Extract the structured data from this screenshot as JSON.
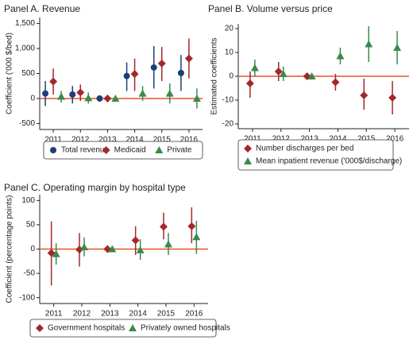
{
  "chart_data": [
    {
      "type": "errorbar",
      "title": "Panel A. Revenue",
      "y_label": "Coefficient ('000 $/bed)",
      "categories": [
        "2011",
        "2012",
        "2013",
        "2014",
        "2015",
        "2016"
      ],
      "ylim": [
        -620,
        1620
      ],
      "yticks": [
        -500,
        0,
        500,
        {
          "value": 1000,
          "label": "1,000"
        },
        {
          "value": 1500,
          "label": "1,500"
        }
      ],
      "zero_line": true,
      "zero_line_color": "#e8532a",
      "series": [
        {
          "name": "Total revenue",
          "color": "#1f3f73",
          "marker": "circle",
          "values": [
            100,
            80,
            0,
            450,
            620,
            510
          ],
          "ci_low": [
            -150,
            -100,
            null,
            150,
            200,
            150
          ],
          "ci_high": [
            350,
            250,
            null,
            720,
            1050,
            870
          ]
        },
        {
          "name": "Medicaid",
          "color": "#a3282c",
          "marker": "diamond",
          "values": [
            340,
            120,
            0,
            490,
            700,
            800
          ],
          "ci_low": [
            80,
            -50,
            null,
            150,
            350,
            400
          ],
          "ci_high": [
            600,
            280,
            null,
            800,
            1030,
            1200
          ]
        },
        {
          "name": "Private",
          "color": "#3a8a4a",
          "marker": "triangle",
          "values": [
            40,
            10,
            0,
            100,
            100,
            0
          ],
          "ci_low": [
            -80,
            -100,
            null,
            -50,
            -100,
            -200
          ],
          "ci_high": [
            150,
            120,
            null,
            250,
            300,
            200
          ]
        }
      ]
    },
    {
      "type": "errorbar",
      "title": "Panel B. Volume versus price",
      "y_label": "Estimated coefficients",
      "categories": [
        "2011",
        "2012",
        "2013",
        "2014",
        "2015",
        "2016"
      ],
      "ylim": [
        -22,
        22
      ],
      "yticks": [
        -20,
        -10,
        0,
        10,
        20
      ],
      "zero_line": true,
      "zero_line_color": "#e8532a",
      "series": [
        {
          "name": "Number discharges per bed",
          "color": "#a3282c",
          "marker": "diamond",
          "values": [
            -3,
            2,
            0,
            -2.5,
            -8,
            -9
          ],
          "ci_low": [
            -9,
            -2,
            null,
            -6,
            -14,
            -16
          ],
          "ci_high": [
            2,
            6,
            null,
            1,
            -1,
            -2
          ]
        },
        {
          "name": "Mean inpatient revenue ('000$/discharge)",
          "color": "#3a8a4a",
          "marker": "triangle",
          "values": [
            3.5,
            1,
            0,
            8.5,
            13.5,
            12
          ],
          "ci_low": [
            0,
            -2,
            null,
            5,
            6,
            5
          ],
          "ci_high": [
            7,
            4,
            null,
            12,
            21,
            19
          ]
        }
      ]
    },
    {
      "type": "errorbar",
      "title": "Panel C. Operating margin by hospital type",
      "y_label": "Coefficient (percentage points)",
      "categories": [
        "2011",
        "2012",
        "2013",
        "2014",
        "2015",
        "2016"
      ],
      "ylim": [
        -112,
        112
      ],
      "yticks": [
        -100,
        -50,
        0,
        50,
        100
      ],
      "zero_line": true,
      "zero_line_color": "#e8532a",
      "series": [
        {
          "name": "Government hospitals",
          "color": "#a3282c",
          "marker": "diamond",
          "values": [
            -8,
            -1,
            0,
            18,
            46,
            47
          ],
          "ci_low": [
            -75,
            -36,
            null,
            -12,
            20,
            12
          ],
          "ci_high": [
            57,
            33,
            null,
            47,
            75,
            86
          ]
        },
        {
          "name": "Privately owned hospitals",
          "color": "#3a8a4a",
          "marker": "triangle",
          "values": [
            -10,
            4,
            0,
            -2,
            10,
            25
          ],
          "ci_low": [
            -32,
            -15,
            null,
            -22,
            -12,
            -10
          ],
          "ci_high": [
            12,
            24,
            null,
            20,
            33,
            58
          ]
        }
      ]
    }
  ]
}
